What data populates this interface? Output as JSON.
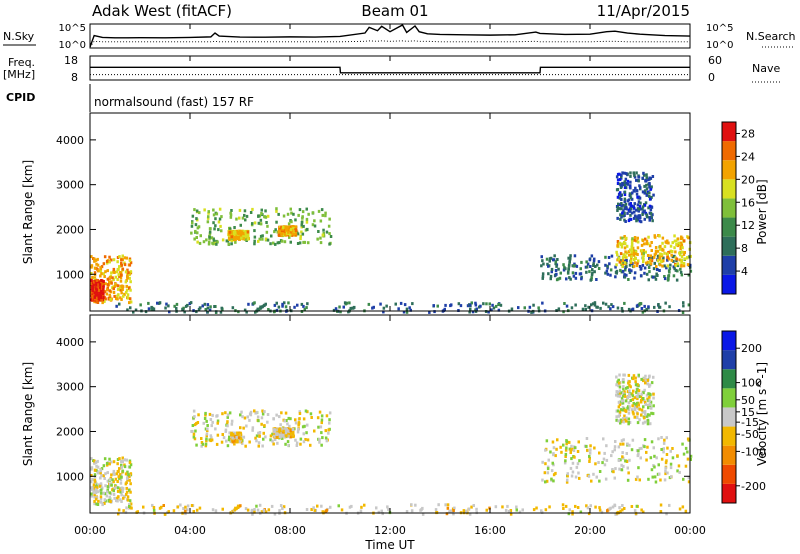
{
  "header": {
    "station": "Adak West (fitACF)",
    "beam": "Beam 01",
    "date": "11/Apr/2015"
  },
  "top_panels": {
    "nsky_label": "N.Sky",
    "nsky_ticks": [
      "10^5",
      "10^0"
    ],
    "nsearch_label": "N.Search",
    "nsearch_ticks": [
      "10^5",
      "10^0"
    ],
    "freq_label": "Freq.",
    "freq_unit": "[MHz]",
    "freq_ticks": [
      "18",
      "8"
    ],
    "nave_label": "Nave",
    "nave_ticks": [
      "60",
      "0"
    ],
    "cpid_label": "CPID",
    "cpid_text": "normalsound (fast) 157 RF"
  },
  "x_axis": {
    "label": "Time UT",
    "ticks": [
      "00:00",
      "04:00",
      "08:00",
      "12:00",
      "16:00",
      "20:00",
      "00:00"
    ]
  },
  "colors": {
    "power": [
      "#0a18e6",
      "#1f3fa8",
      "#2e6e5a",
      "#3c8a4a",
      "#7fbf3a",
      "#d8e020",
      "#f2a300",
      "#ef6a00",
      "#e01010"
    ],
    "velocity": [
      "#e01010",
      "#ef4a00",
      "#f28c00",
      "#f2b800",
      "#c8c8c8",
      "#7fcf3a",
      "#2e8a46",
      "#1f3fa8",
      "#0a18e6"
    ]
  },
  "chart_data": [
    {
      "type": "line",
      "title": "N.Sky / N.Search",
      "x": [
        "00:00",
        "00:10",
        "00:30",
        "01:00",
        "02:00",
        "03:00",
        "04:00",
        "04:50",
        "05:00",
        "05:10",
        "06:00",
        "07:00",
        "08:00",
        "09:00",
        "10:00",
        "11:00",
        "11:10",
        "11:30",
        "11:40",
        "12:00",
        "12:30",
        "12:40",
        "13:00",
        "13:10",
        "13:30",
        "14:00",
        "15:00",
        "16:00",
        "17:00",
        "17:50",
        "18:00",
        "19:00",
        "20:00",
        "20:40",
        "21:00",
        "21:30",
        "22:00",
        "23:00",
        "24:00"
      ],
      "series": [
        {
          "name": "N.Sky",
          "values": [
            1,
            400,
            150,
            120,
            130,
            120,
            150,
            200,
            1500,
            300,
            180,
            170,
            200,
            180,
            250,
            1500,
            30000,
            5000,
            50000,
            3000,
            100000,
            2000,
            60000,
            3000,
            1000,
            700,
            600,
            500,
            600,
            2500,
            1200,
            700,
            800,
            3000,
            4000,
            1500,
            800,
            400,
            300
          ]
        },
        {
          "name": "N.Search",
          "values": [
            1,
            20,
            15,
            15,
            15,
            15,
            15,
            15,
            20,
            15,
            15,
            15,
            15,
            15,
            15,
            20,
            25,
            20,
            25,
            20,
            25,
            20,
            25,
            20,
            20,
            15,
            15,
            15,
            15,
            20,
            15,
            15,
            15,
            20,
            20,
            15,
            15,
            15,
            15
          ]
        }
      ],
      "ylim": [
        "10^0",
        "10^5"
      ]
    },
    {
      "type": "line",
      "title": "Freq. [MHz] / Nave",
      "x": [
        "00:00",
        "10:00",
        "10:01",
        "18:00",
        "18:01",
        "24:00"
      ],
      "series": [
        {
          "name": "Freq.",
          "values": [
            13.3,
            13.3,
            10.8,
            10.8,
            13.3,
            13.3
          ]
        },
        {
          "name": "Nave",
          "values": [
            12,
            12,
            12,
            12,
            12,
            12
          ]
        }
      ],
      "ylim": [
        8,
        18
      ],
      "ylim_right": [
        0,
        60
      ]
    },
    {
      "type": "heatmap",
      "title": "",
      "xlabel": "Time UT",
      "ylabel": "Slant Range [km]",
      "yticks": [
        1000,
        2000,
        3000,
        4000
      ],
      "ylim": [
        180,
        4600
      ],
      "colorbar_label": "Power [dB]",
      "colorbar_ticks": [
        4,
        8,
        12,
        16,
        20,
        24,
        28
      ],
      "colorbar_range": [
        0,
        30
      ],
      "blobs": [
        {
          "t": [
            0.0,
            1.6
          ],
          "r": [
            400,
            1450
          ],
          "value": 22,
          "note": "near-range band"
        },
        {
          "t": [
            0.0,
            0.5
          ],
          "r": [
            450,
            900
          ],
          "value": 28
        },
        {
          "t": [
            4.0,
            9.6
          ],
          "r": [
            1700,
            2500
          ],
          "value": 14,
          "note": "wavy scatter band"
        },
        {
          "t": [
            5.5,
            6.3
          ],
          "r": [
            1800,
            2000
          ],
          "value": 20
        },
        {
          "t": [
            7.5,
            8.2
          ],
          "r": [
            1900,
            2100
          ],
          "value": 22
        },
        {
          "t": [
            18.0,
            24.0
          ],
          "r": [
            900,
            1450
          ],
          "value": 8
        },
        {
          "t": [
            21.0,
            24.0
          ],
          "r": [
            1200,
            1900
          ],
          "value": 20
        },
        {
          "t": [
            21.0,
            22.5
          ],
          "r": [
            2200,
            3300
          ],
          "value": 6
        },
        {
          "t": [
            1.0,
            24.0
          ],
          "r": [
            180,
            400
          ],
          "value": 8,
          "note": "ground-level noise"
        }
      ]
    },
    {
      "type": "heatmap",
      "title": "",
      "xlabel": "Time UT",
      "ylabel": "Velocity [m s^-1] / Slant Range [km]",
      "yticks": [
        1000,
        2000,
        3000,
        4000
      ],
      "ylim": [
        180,
        4600
      ],
      "colorbar_label": "Velocity [m s^-1]",
      "colorbar_ticks": [
        -200,
        -100,
        -50,
        -15,
        15,
        50,
        100,
        200
      ],
      "colorbar_range": [
        -250,
        250
      ],
      "blobs": [
        {
          "t": [
            0.0,
            1.6
          ],
          "r": [
            400,
            1450
          ],
          "value": 0
        },
        {
          "t": [
            4.0,
            9.6
          ],
          "r": [
            1700,
            2500
          ],
          "value": 0
        },
        {
          "t": [
            5.6,
            6.0
          ],
          "r": [
            1800,
            2000
          ],
          "value": -40
        },
        {
          "t": [
            7.3,
            8.1
          ],
          "r": [
            1900,
            2100
          ],
          "value": -40
        },
        {
          "t": [
            18.0,
            24.0
          ],
          "r": [
            900,
            1900
          ],
          "value": 0
        },
        {
          "t": [
            21.0,
            22.5
          ],
          "r": [
            2200,
            3300
          ],
          "value": 0
        },
        {
          "t": [
            1.0,
            24.0
          ],
          "r": [
            180,
            400
          ],
          "value": -30
        }
      ]
    }
  ]
}
